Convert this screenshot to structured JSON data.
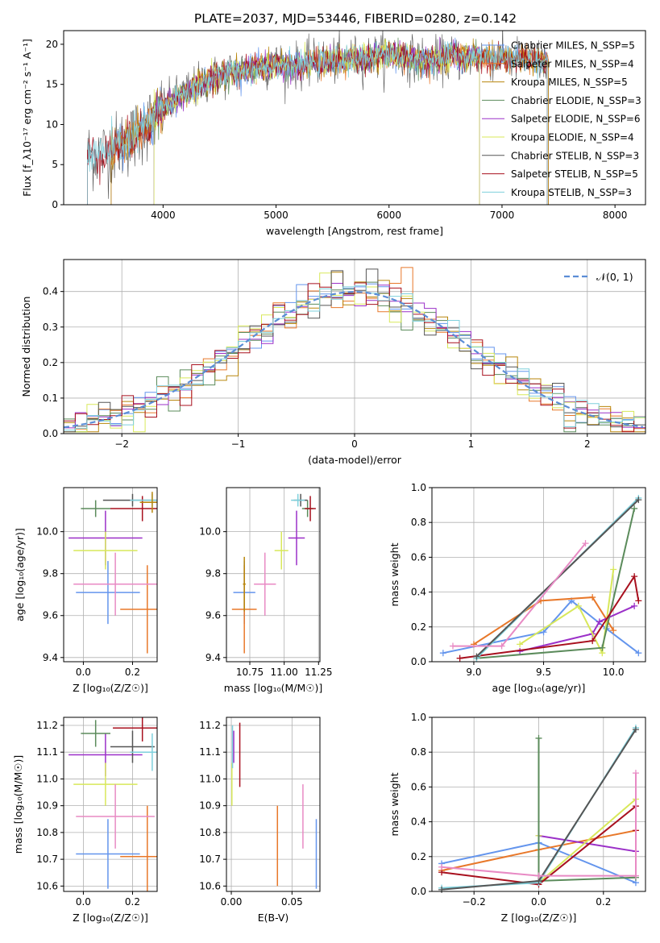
{
  "title": "PLATE=2037, MJD=53446, FIBERID=0280, z=0.142",
  "model_colors": [
    "#6495ED",
    "#E8782A",
    "#B8860B",
    "#5B8B5B",
    "#9B30C8",
    "#D8E85A",
    "#555555",
    "#A8101E",
    "#7ED0DC"
  ],
  "chart_data": [
    {
      "id": "spectrum",
      "type": "line",
      "title": "PLATE=2037, MJD=53446, FIBERID=0280, z=0.142",
      "xlabel": "wavelength [Angstrom, rest frame]",
      "ylabel": "Flux [f_λ10⁻¹⁷ erg cm⁻² s⁻¹ A⁻¹]",
      "xlim": [
        3120,
        8270
      ],
      "ylim": [
        0,
        21.7
      ],
      "xticks": [
        "4000",
        "5000",
        "6000",
        "7000",
        "8000"
      ],
      "yticks": [
        "0",
        "5",
        "10",
        "15",
        "20"
      ],
      "legend_position": "top-right",
      "series": [
        {
          "name": "Chabrier MILES, N_SSP=5"
        },
        {
          "name": "Salpeter MILES, N_SSP=4"
        },
        {
          "name": "Kroupa MILES, N_SSP=5"
        },
        {
          "name": "Chabrier ELODIE, N_SSP=3"
        },
        {
          "name": "Salpeter ELODIE, N_SSP=6"
        },
        {
          "name": "Kroupa ELODIE, N_SSP=4"
        },
        {
          "name": "Chabrier STELIB, N_SSP=3"
        },
        {
          "name": "Salpeter STELIB, N_SSP=5"
        },
        {
          "name": "Kroupa STELIB, N_SSP=3"
        }
      ],
      "continuum": {
        "x": [
          3330,
          3500,
          3700,
          3900,
          4000,
          4200,
          4400,
          4600,
          4800,
          5000,
          5200,
          5400,
          5600,
          5800,
          6000,
          6200,
          6400,
          6600,
          6800,
          7000,
          7200,
          7400
        ],
        "y": [
          6.2,
          6.5,
          8.0,
          10.5,
          12.0,
          14.0,
          15.5,
          16.5,
          17.0,
          17.5,
          17.3,
          17.8,
          18.0,
          18.4,
          18.8,
          18.2,
          18.0,
          18.3,
          18.5,
          18.2,
          18.0,
          17.8
        ]
      },
      "coverage": {
        "MILES": [
          3540,
          7410
        ],
        "ELODIE": [
          3920,
          6800
        ],
        "STELIB": [
          3330,
          7400
        ]
      }
    },
    {
      "id": "residuals",
      "type": "histogram",
      "xlabel": "(data-model)/error",
      "ylabel": "Normed distribution",
      "xlim": [
        -2.5,
        2.5
      ],
      "ylim": [
        0,
        0.49
      ],
      "xticks": [
        "−2",
        "−1",
        "0",
        "1",
        "2"
      ],
      "yticks": [
        "0.0",
        "0.1",
        "0.2",
        "0.3",
        "0.4"
      ],
      "grid": true,
      "legend_position": "top-right",
      "reference_label": "𝒩(0, 1)",
      "bin_width": 0.1
    },
    {
      "id": "age_vs_Z",
      "type": "scatter",
      "xlabel": "Z [log₁₀(Z/Z☉)]",
      "ylabel": "age  [log₁₀(age/yr)]",
      "xlim": [
        -0.08,
        0.3
      ],
      "ylim": [
        9.38,
        10.21
      ],
      "xticks": [
        {
          "v": 0.0,
          "t": "0.0"
        },
        {
          "v": 0.2,
          "t": "0.2"
        }
      ],
      "yticks": [
        {
          "v": 9.4,
          "t": "9.4"
        },
        {
          "v": 9.6,
          "t": "9.6"
        },
        {
          "v": 9.8,
          "t": "9.8"
        },
        {
          "v": 10.0,
          "t": "10.0"
        }
      ],
      "grid": true,
      "points": [
        {
          "model": 0,
          "x": 0.1,
          "y": 9.71,
          "xerr": 0.13,
          "yerr": 0.15
        },
        {
          "model": 1,
          "x": 0.26,
          "y": 9.63,
          "xerr": 0.11,
          "yerr": 0.21
        },
        {
          "model": 4,
          "x": 0.09,
          "y": 9.97,
          "xerr": 0.15,
          "yerr": 0.13
        },
        {
          "model": 5,
          "x": 0.09,
          "y": 9.91,
          "xerr": 0.13,
          "yerr": 0.09
        },
        {
          "model": 3,
          "x": 0.05,
          "y": 10.11,
          "xerr": 0.06,
          "yerr": 0.04
        },
        {
          "model": 6,
          "x": 0.2,
          "y": 10.15,
          "xerr": 0.12,
          "yerr": 0.03
        },
        {
          "model": 7,
          "x": 0.24,
          "y": 10.11,
          "xerr": 0.13,
          "yerr": 0.06
        },
        {
          "model": 8,
          "x": 0.28,
          "y": 10.15,
          "xerr": 0.09,
          "yerr": 0.03
        },
        {
          "model": 2,
          "x": 0.28,
          "y": 10.14,
          "xerr": 0.05,
          "yerr": 0.05
        },
        {
          "model": 9,
          "x": 0.13,
          "y": 9.75,
          "xerr": 0.17,
          "yerr": 0.15
        }
      ]
    },
    {
      "id": "age_vs_mass",
      "type": "scatter",
      "xlabel": "mass [log₁₀(M/M☉)]",
      "ylabel": "",
      "xlim": [
        10.58,
        11.26
      ],
      "ylim": [
        9.38,
        10.21
      ],
      "xticks": [
        {
          "v": 10.75,
          "t": "10.75"
        },
        {
          "v": 11.0,
          "t": "11.00"
        },
        {
          "v": 11.25,
          "t": "11.25"
        }
      ],
      "yticks": [
        {
          "v": 9.4,
          "t": "9.4"
        },
        {
          "v": 9.6,
          "t": "9.6"
        },
        {
          "v": 9.8,
          "t": "9.8"
        },
        {
          "v": 10.0,
          "t": "10.0"
        }
      ],
      "grid": true,
      "points": [
        {
          "model": 0,
          "x": 10.71,
          "y": 9.71,
          "xerr": 0.08,
          "yerr": 0.15
        },
        {
          "model": 1,
          "x": 10.71,
          "y": 9.63,
          "xerr": 0.09,
          "yerr": 0.21
        },
        {
          "model": 4,
          "x": 11.09,
          "y": 9.97,
          "xerr": 0.06,
          "yerr": 0.13
        },
        {
          "model": 5,
          "x": 10.98,
          "y": 9.91,
          "xerr": 0.05,
          "yerr": 0.09
        },
        {
          "model": 3,
          "x": 11.17,
          "y": 10.11,
          "xerr": 0.04,
          "yerr": 0.04
        },
        {
          "model": 6,
          "x": 11.12,
          "y": 10.15,
          "xerr": 0.05,
          "yerr": 0.03
        },
        {
          "model": 7,
          "x": 11.19,
          "y": 10.11,
          "xerr": 0.04,
          "yerr": 0.06
        },
        {
          "model": 8,
          "x": 11.1,
          "y": 10.15,
          "xerr": 0.05,
          "yerr": 0.03
        },
        {
          "model": 2,
          "x": 10.71,
          "y": 9.75,
          "xerr": 0.01,
          "yerr": 0.13
        },
        {
          "model": 9,
          "x": 10.86,
          "y": 9.75,
          "xerr": 0.08,
          "yerr": 0.15
        }
      ]
    },
    {
      "id": "massweight_vs_age",
      "type": "line",
      "xlabel": "age  [log₁₀(age/yr)]",
      "ylabel": "mass weight",
      "xlim": [
        8.7,
        10.23
      ],
      "ylim": [
        0,
        1.0
      ],
      "xticks": [
        {
          "v": 9.0,
          "t": "9.0"
        },
        {
          "v": 9.5,
          "t": "9.5"
        },
        {
          "v": 10.0,
          "t": "10.0"
        }
      ],
      "yticks": [
        {
          "v": 0.0,
          "t": "0.0"
        },
        {
          "v": 0.2,
          "t": "0.2"
        },
        {
          "v": 0.4,
          "t": "0.4"
        },
        {
          "v": 0.6,
          "t": "0.6"
        },
        {
          "v": 0.8,
          "t": "0.8"
        },
        {
          "v": 1.0,
          "t": "1.0"
        }
      ],
      "grid": true,
      "series": [
        {
          "model": 0,
          "x": [
            8.78,
            9.5,
            9.7,
            9.95,
            10.18
          ],
          "y": [
            0.05,
            0.17,
            0.35,
            0.19,
            0.05
          ]
        },
        {
          "model": 1,
          "x": [
            9.0,
            9.48,
            9.85,
            10.0
          ],
          "y": [
            0.1,
            0.35,
            0.37,
            0.18
          ]
        },
        {
          "model": 4,
          "x": [
            9.33,
            9.85,
            9.9,
            10.15
          ],
          "y": [
            0.06,
            0.16,
            0.23,
            0.32
          ]
        },
        {
          "model": 5,
          "x": [
            9.33,
            9.75,
            9.92,
            10.0
          ],
          "y": [
            0.1,
            0.32,
            0.05,
            0.53
          ]
        },
        {
          "model": 3,
          "x": [
            9.02,
            9.92,
            10.15
          ],
          "y": [
            0.02,
            0.08,
            0.88
          ]
        },
        {
          "model": 7,
          "x": [
            8.9,
            9.85,
            10.15,
            10.18
          ],
          "y": [
            0.02,
            0.12,
            0.49,
            0.35
          ]
        },
        {
          "model": 8,
          "x": [
            9.02,
            10.18
          ],
          "y": [
            0.02,
            0.94
          ]
        },
        {
          "model": 6,
          "x": [
            9.02,
            10.18
          ],
          "y": [
            0.03,
            0.93
          ]
        },
        {
          "model": 9,
          "x": [
            8.85,
            9.2,
            9.8
          ],
          "y": [
            0.09,
            0.09,
            0.68
          ]
        }
      ]
    },
    {
      "id": "mass_vs_Z",
      "type": "scatter",
      "xlabel": "Z [log₁₀(Z/Z☉)]",
      "ylabel": "mass [log₁₀(M/M☉)]",
      "xlim": [
        -0.08,
        0.3
      ],
      "ylim": [
        10.58,
        11.23
      ],
      "xticks": [
        {
          "v": 0.0,
          "t": "0.0"
        },
        {
          "v": 0.2,
          "t": "0.2"
        }
      ],
      "yticks": [
        {
          "v": 10.6,
          "t": "10.6"
        },
        {
          "v": 10.7,
          "t": "10.7"
        },
        {
          "v": 10.8,
          "t": "10.8"
        },
        {
          "v": 10.9,
          "t": "10.9"
        },
        {
          "v": 11.0,
          "t": "11.0"
        },
        {
          "v": 11.1,
          "t": "11.1"
        },
        {
          "v": 11.2,
          "t": "11.2"
        }
      ],
      "grid": true,
      "points": [
        {
          "model": 0,
          "x": 0.1,
          "y": 10.72,
          "xerr": 0.13,
          "yerr": 0.13
        },
        {
          "model": 1,
          "x": 0.26,
          "y": 10.71,
          "xerr": 0.11,
          "yerr": 0.19
        },
        {
          "model": 4,
          "x": 0.09,
          "y": 11.09,
          "xerr": 0.15,
          "yerr": 0.08
        },
        {
          "model": 5,
          "x": 0.09,
          "y": 10.98,
          "xerr": 0.13,
          "yerr": 0.08
        },
        {
          "model": 3,
          "x": 0.05,
          "y": 11.17,
          "xerr": 0.06,
          "yerr": 0.05
        },
        {
          "model": 6,
          "x": 0.2,
          "y": 11.12,
          "xerr": 0.09,
          "yerr": 0.06
        },
        {
          "model": 7,
          "x": 0.24,
          "y": 11.19,
          "xerr": 0.12,
          "yerr": 0.05
        },
        {
          "model": 8,
          "x": 0.28,
          "y": 11.1,
          "xerr": 0.09,
          "yerr": 0.07
        },
        {
          "model": 9,
          "x": 0.13,
          "y": 10.86,
          "xerr": 0.16,
          "yerr": 0.12
        }
      ]
    },
    {
      "id": "mass_vs_ebv",
      "type": "scatter",
      "xlabel": "E(B-V)",
      "ylabel": "",
      "xlim": [
        -0.004,
        0.073
      ],
      "ylim": [
        10.58,
        11.23
      ],
      "xticks": [
        {
          "v": 0.0,
          "t": "0.00"
        },
        {
          "v": 0.05,
          "t": "0.05"
        }
      ],
      "yticks": [
        {
          "v": 10.6,
          "t": "10.6"
        },
        {
          "v": 10.7,
          "t": "10.7"
        },
        {
          "v": 10.8,
          "t": "10.8"
        },
        {
          "v": 10.9,
          "t": "10.9"
        },
        {
          "v": 11.0,
          "t": "11.0"
        },
        {
          "v": 11.1,
          "t": "11.1"
        },
        {
          "v": 11.2,
          "t": "11.2"
        }
      ],
      "grid": true,
      "points": [
        {
          "model": 0,
          "x": 0.07,
          "y": 10.72,
          "xerr": 0.0,
          "yerr": 0.13
        },
        {
          "model": 1,
          "x": 0.038,
          "y": 10.75,
          "xerr": 0.0,
          "yerr": 0.15
        },
        {
          "model": 9,
          "x": 0.059,
          "y": 10.86,
          "xerr": 0.0,
          "yerr": 0.12
        },
        {
          "model": 5,
          "x": 0.0005,
          "y": 10.98,
          "xerr": 0.0,
          "yerr": 0.08
        },
        {
          "model": 7,
          "x": 0.007,
          "y": 11.09,
          "xerr": 0.0,
          "yerr": 0.12
        },
        {
          "model": 8,
          "x": 0.001,
          "y": 11.12,
          "xerr": 0.0,
          "yerr": 0.08
        },
        {
          "model": 4,
          "x": 0.002,
          "y": 11.12,
          "xerr": 0.0,
          "yerr": 0.06
        }
      ]
    },
    {
      "id": "massweight_vs_Z",
      "type": "line",
      "xlabel": "Z [log₁₀(Z/Z☉)]",
      "ylabel": "mass weight",
      "xlim": [
        -0.33,
        0.33
      ],
      "ylim": [
        0,
        1.0
      ],
      "xticks": [
        {
          "v": -0.2,
          "t": "−0.2"
        },
        {
          "v": 0.0,
          "t": "0.0"
        },
        {
          "v": 0.2,
          "t": "0.2"
        }
      ],
      "yticks": [
        {
          "v": 0.0,
          "t": "0.0"
        },
        {
          "v": 0.2,
          "t": "0.2"
        },
        {
          "v": 0.4,
          "t": "0.4"
        },
        {
          "v": 0.6,
          "t": "0.6"
        },
        {
          "v": 0.8,
          "t": "0.8"
        },
        {
          "v": 1.0,
          "t": "1.0"
        }
      ],
      "grid": true,
      "series": [
        {
          "model": 0,
          "x": [
            -0.3,
            0.0,
            0.3
          ],
          "y": [
            0.16,
            0.28,
            0.05
          ]
        },
        {
          "model": 1,
          "x": [
            -0.3,
            0.0,
            0.3
          ],
          "y": [
            0.12,
            0.24,
            0.35
          ]
        },
        {
          "model": 4,
          "x": [
            0.0,
            0.3
          ],
          "y": [
            0.32,
            0.23
          ]
        },
        {
          "model": 5,
          "x": [
            0.0,
            0.0,
            0.3
          ],
          "y": [
            0.32,
            0.05,
            0.53
          ]
        },
        {
          "model": 3,
          "x": [
            0.0,
            0.0,
            0.3
          ],
          "y": [
            0.88,
            0.06,
            0.08
          ]
        },
        {
          "model": 7,
          "x": [
            -0.3,
            0.0,
            0.3,
            0.3
          ],
          "y": [
            0.11,
            0.04,
            0.49,
            0.35
          ]
        },
        {
          "model": 8,
          "x": [
            -0.3,
            0.0,
            0.3
          ],
          "y": [
            0.02,
            0.05,
            0.94
          ]
        },
        {
          "model": 6,
          "x": [
            -0.3,
            0.0,
            0.3
          ],
          "y": [
            0.01,
            0.06,
            0.93
          ]
        },
        {
          "model": 9,
          "x": [
            -0.3,
            0.0,
            0.3,
            0.3
          ],
          "y": [
            0.14,
            0.09,
            0.09,
            0.68
          ]
        }
      ]
    }
  ]
}
